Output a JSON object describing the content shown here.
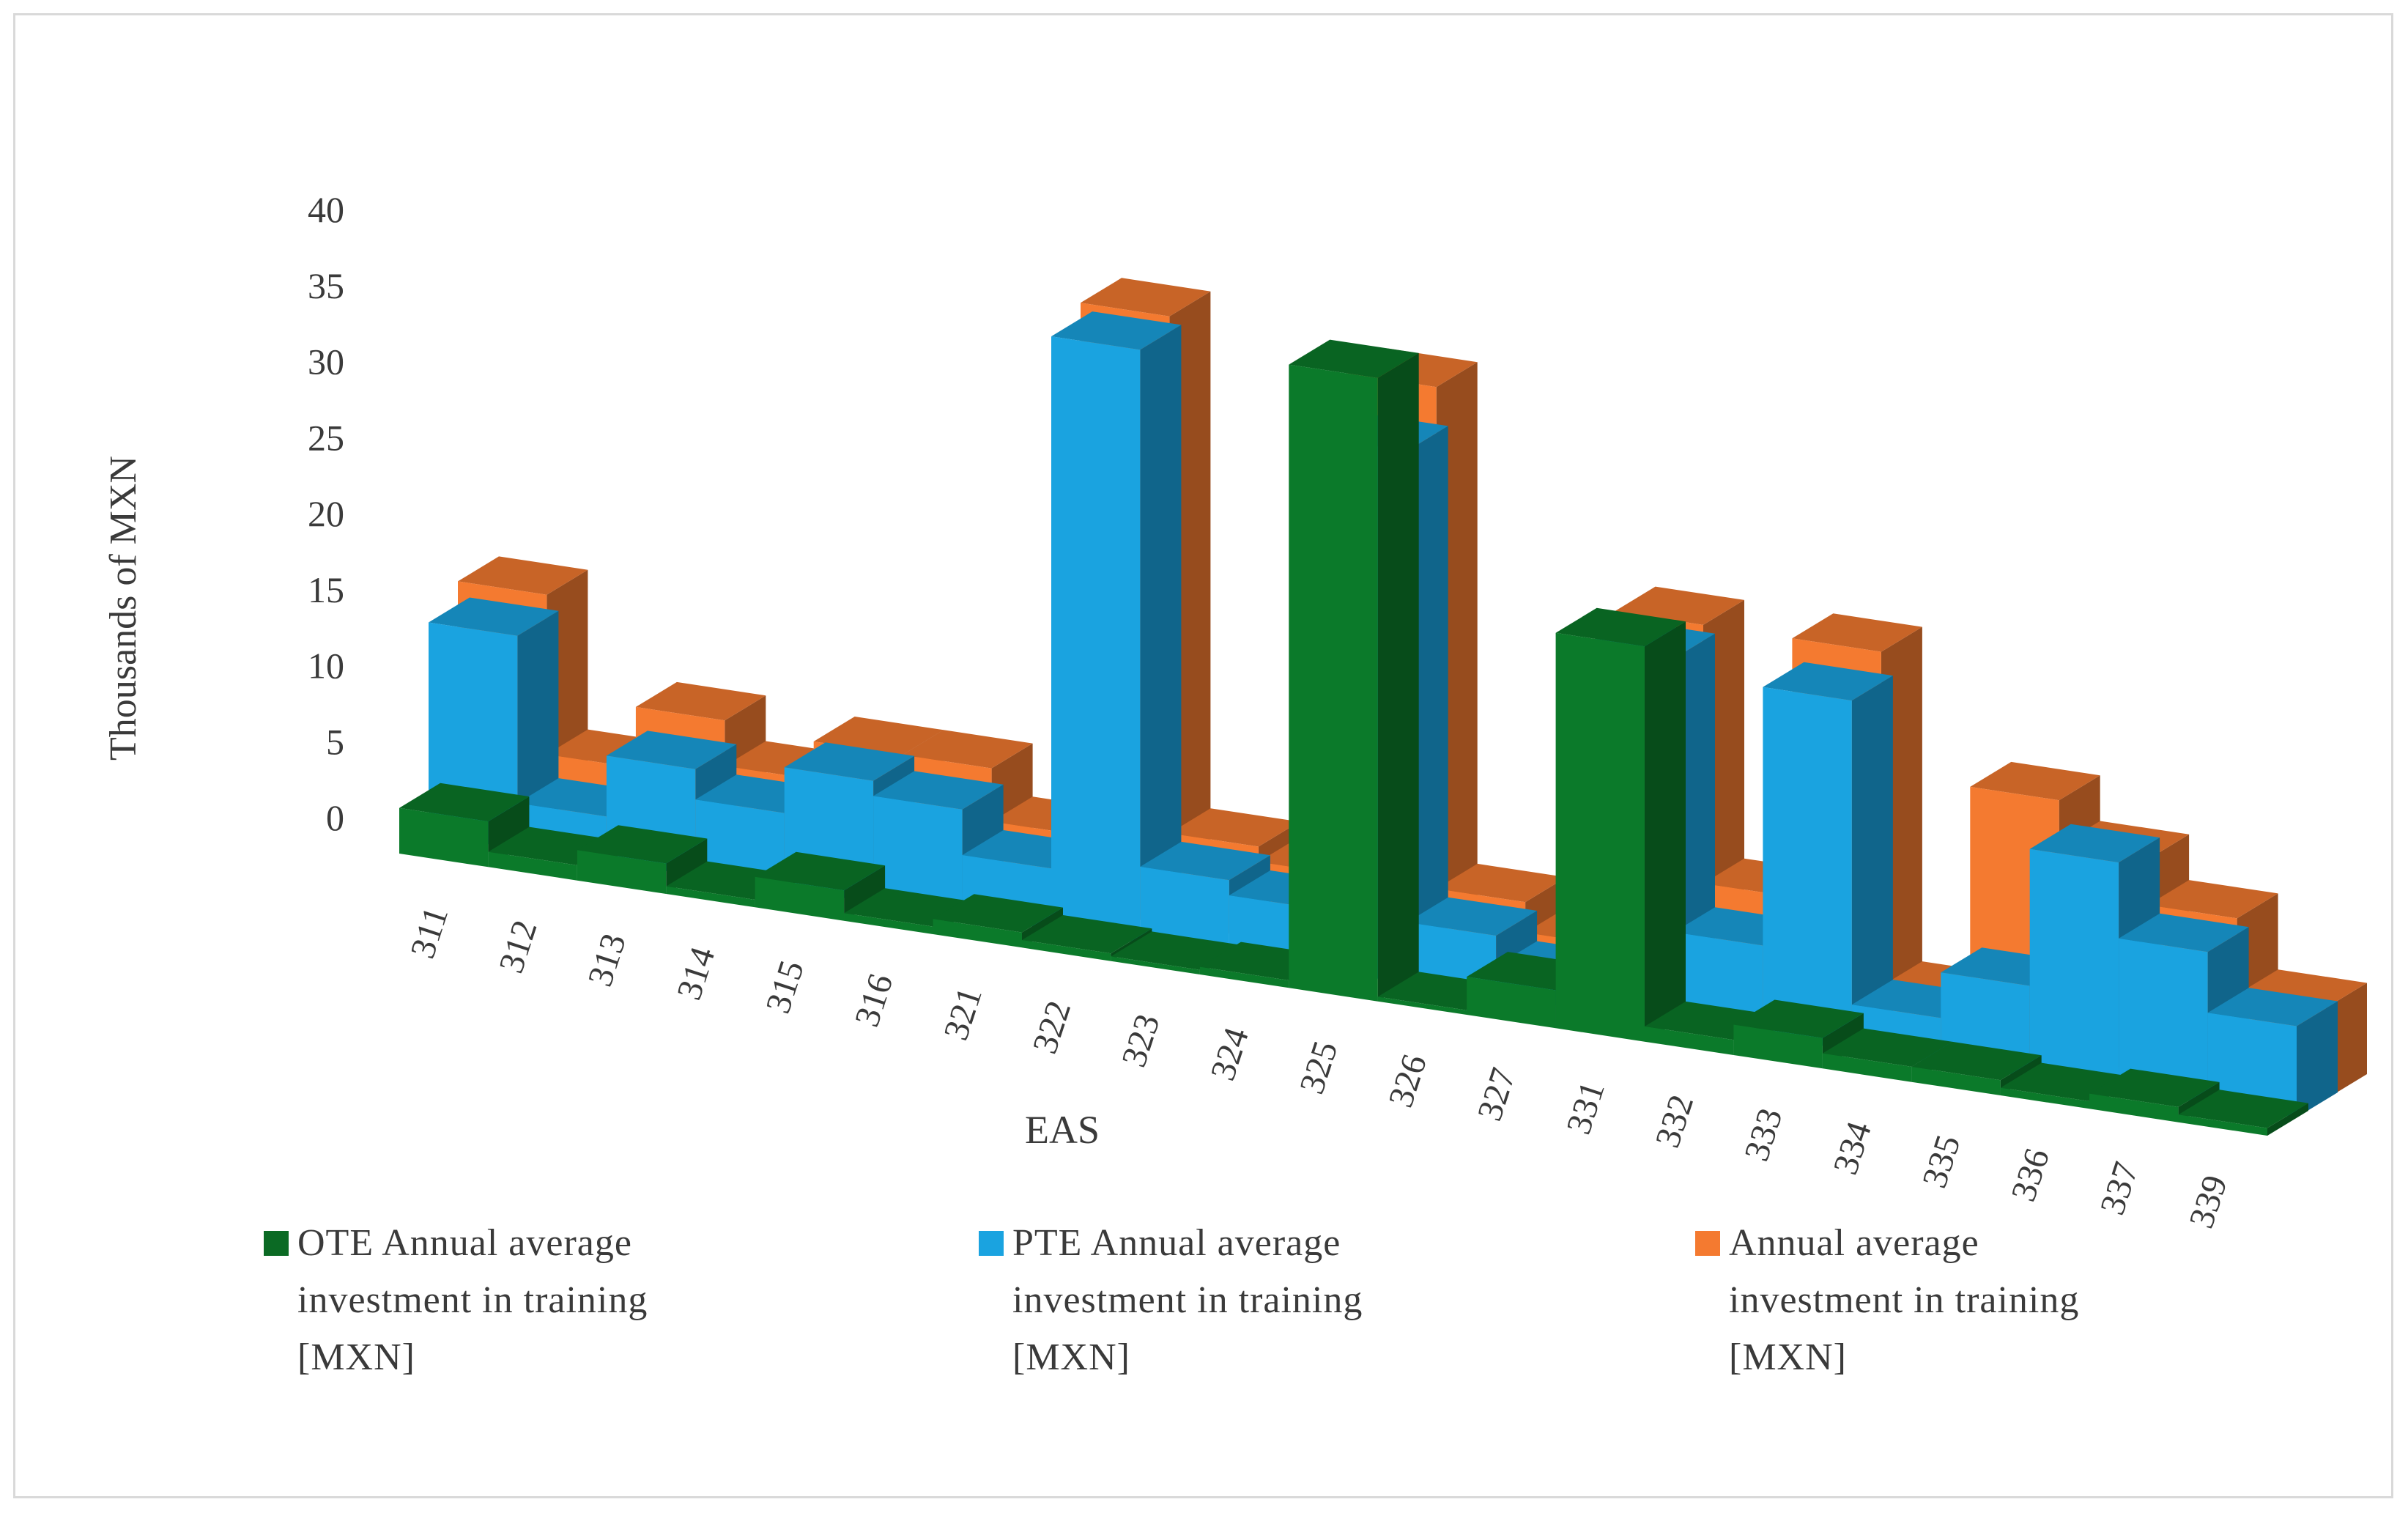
{
  "chart_data": {
    "type": "bar",
    "subtype": "3d-area-stepped",
    "title": "",
    "xlabel": "EAS",
    "ylabel": "Thousands of MXN",
    "ylim": [
      0,
      40
    ],
    "yticks": [
      "0",
      "5",
      "10",
      "15",
      "20",
      "25",
      "30",
      "35",
      "40"
    ],
    "categories": [
      "311",
      "312",
      "313",
      "314",
      "315",
      "316",
      "321",
      "322",
      "323",
      "324",
      "325",
      "326",
      "327",
      "331",
      "332",
      "333",
      "334",
      "335",
      "336",
      "337",
      "339"
    ],
    "series": [
      {
        "name": "OTE Annual average investment in training [MXN]",
        "color": "#0b7a2a",
        "values": [
          3,
          1,
          2,
          0.5,
          2,
          0.5,
          1,
          0.5,
          0.3,
          0.5,
          41,
          0.3,
          2.5,
          26,
          1,
          2,
          1,
          1,
          0.5,
          1,
          0.5
        ]
      },
      {
        "name": "PTE Annual average investment in training [MXN]",
        "color": "#1aa3e0",
        "values": [
          14,
          3,
          7,
          5,
          8,
          7,
          4,
          39,
          5,
          4,
          35,
          4,
          2,
          24,
          6,
          23,
          3,
          6,
          15,
          10,
          6
        ]
      },
      {
        "name": "Annual average investment in training [MXN]",
        "color": "#f47a30",
        "values": [
          15.5,
          5,
          9,
          6,
          8.5,
          8.5,
          5,
          40,
          6,
          5,
          38,
          5,
          3,
          25,
          8,
          25,
          3,
          17,
          14,
          11,
          6
        ]
      }
    ]
  },
  "legend": {
    "s1": "OTE Annual average investment in training [MXN]",
    "s2": "PTE Annual average investment in training [MXN]",
    "s3": "Annual average investment in training [MXN]"
  }
}
